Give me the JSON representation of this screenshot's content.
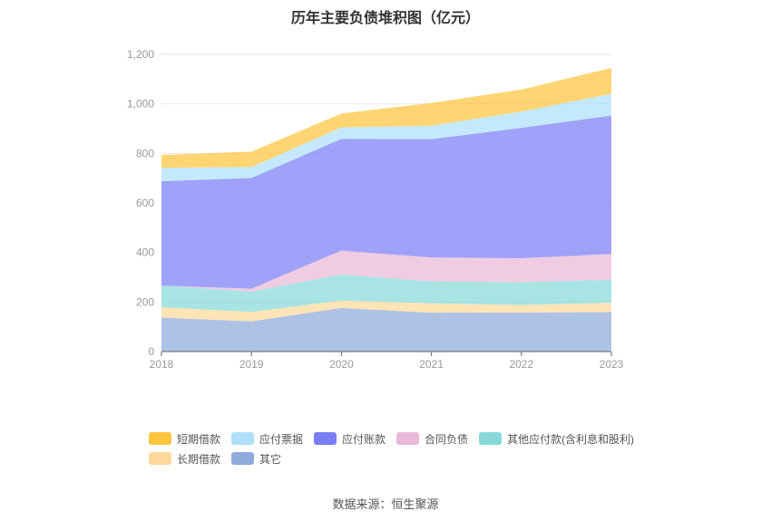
{
  "chart_data": {
    "type": "area",
    "stacked": true,
    "title": "历年主要负债堆积图（亿元）",
    "x": [
      "2018",
      "2019",
      "2020",
      "2021",
      "2022",
      "2023"
    ],
    "ylim": [
      0,
      1200
    ],
    "yticks": [
      "0",
      "200",
      "400",
      "600",
      "800",
      "1,000",
      "1,200"
    ],
    "ytick_values": [
      0,
      200,
      400,
      600,
      800,
      1000,
      1200
    ],
    "grid": true,
    "legend_position": "bottom",
    "series": [
      {
        "name": "其它",
        "color": "#8faadc",
        "values": [
          137,
          122,
          176,
          157,
          158,
          159
        ]
      },
      {
        "name": "长期借款",
        "color": "#ffd99a",
        "values": [
          42,
          38,
          30,
          38,
          30,
          38
        ]
      },
      {
        "name": "其他应付款(含利息和股利)",
        "color": "#87d9d9",
        "values": [
          87,
          82,
          106,
          88,
          92,
          93
        ]
      },
      {
        "name": "合同负债",
        "color": "#eab8d8",
        "values": [
          0,
          12,
          96,
          97,
          97,
          104
        ]
      },
      {
        "name": "应付账款",
        "color": "#7a7ef5",
        "values": [
          422,
          447,
          451,
          478,
          526,
          559
        ]
      },
      {
        "name": "应付票据",
        "color": "#aee0fb",
        "values": [
          54,
          44,
          46,
          54,
          66,
          88
        ]
      },
      {
        "name": "短期借款",
        "color": "#ffc53d",
        "values": [
          52,
          62,
          56,
          92,
          89,
          104
        ]
      }
    ],
    "legend_rows": [
      [
        "短期借款",
        "应付票据",
        "应付账款",
        "合同负债",
        "其他应付款(含利息和股利)"
      ],
      [
        "长期借款",
        "其它"
      ]
    ]
  },
  "footer": {
    "source": "数据来源：恒生聚源"
  }
}
